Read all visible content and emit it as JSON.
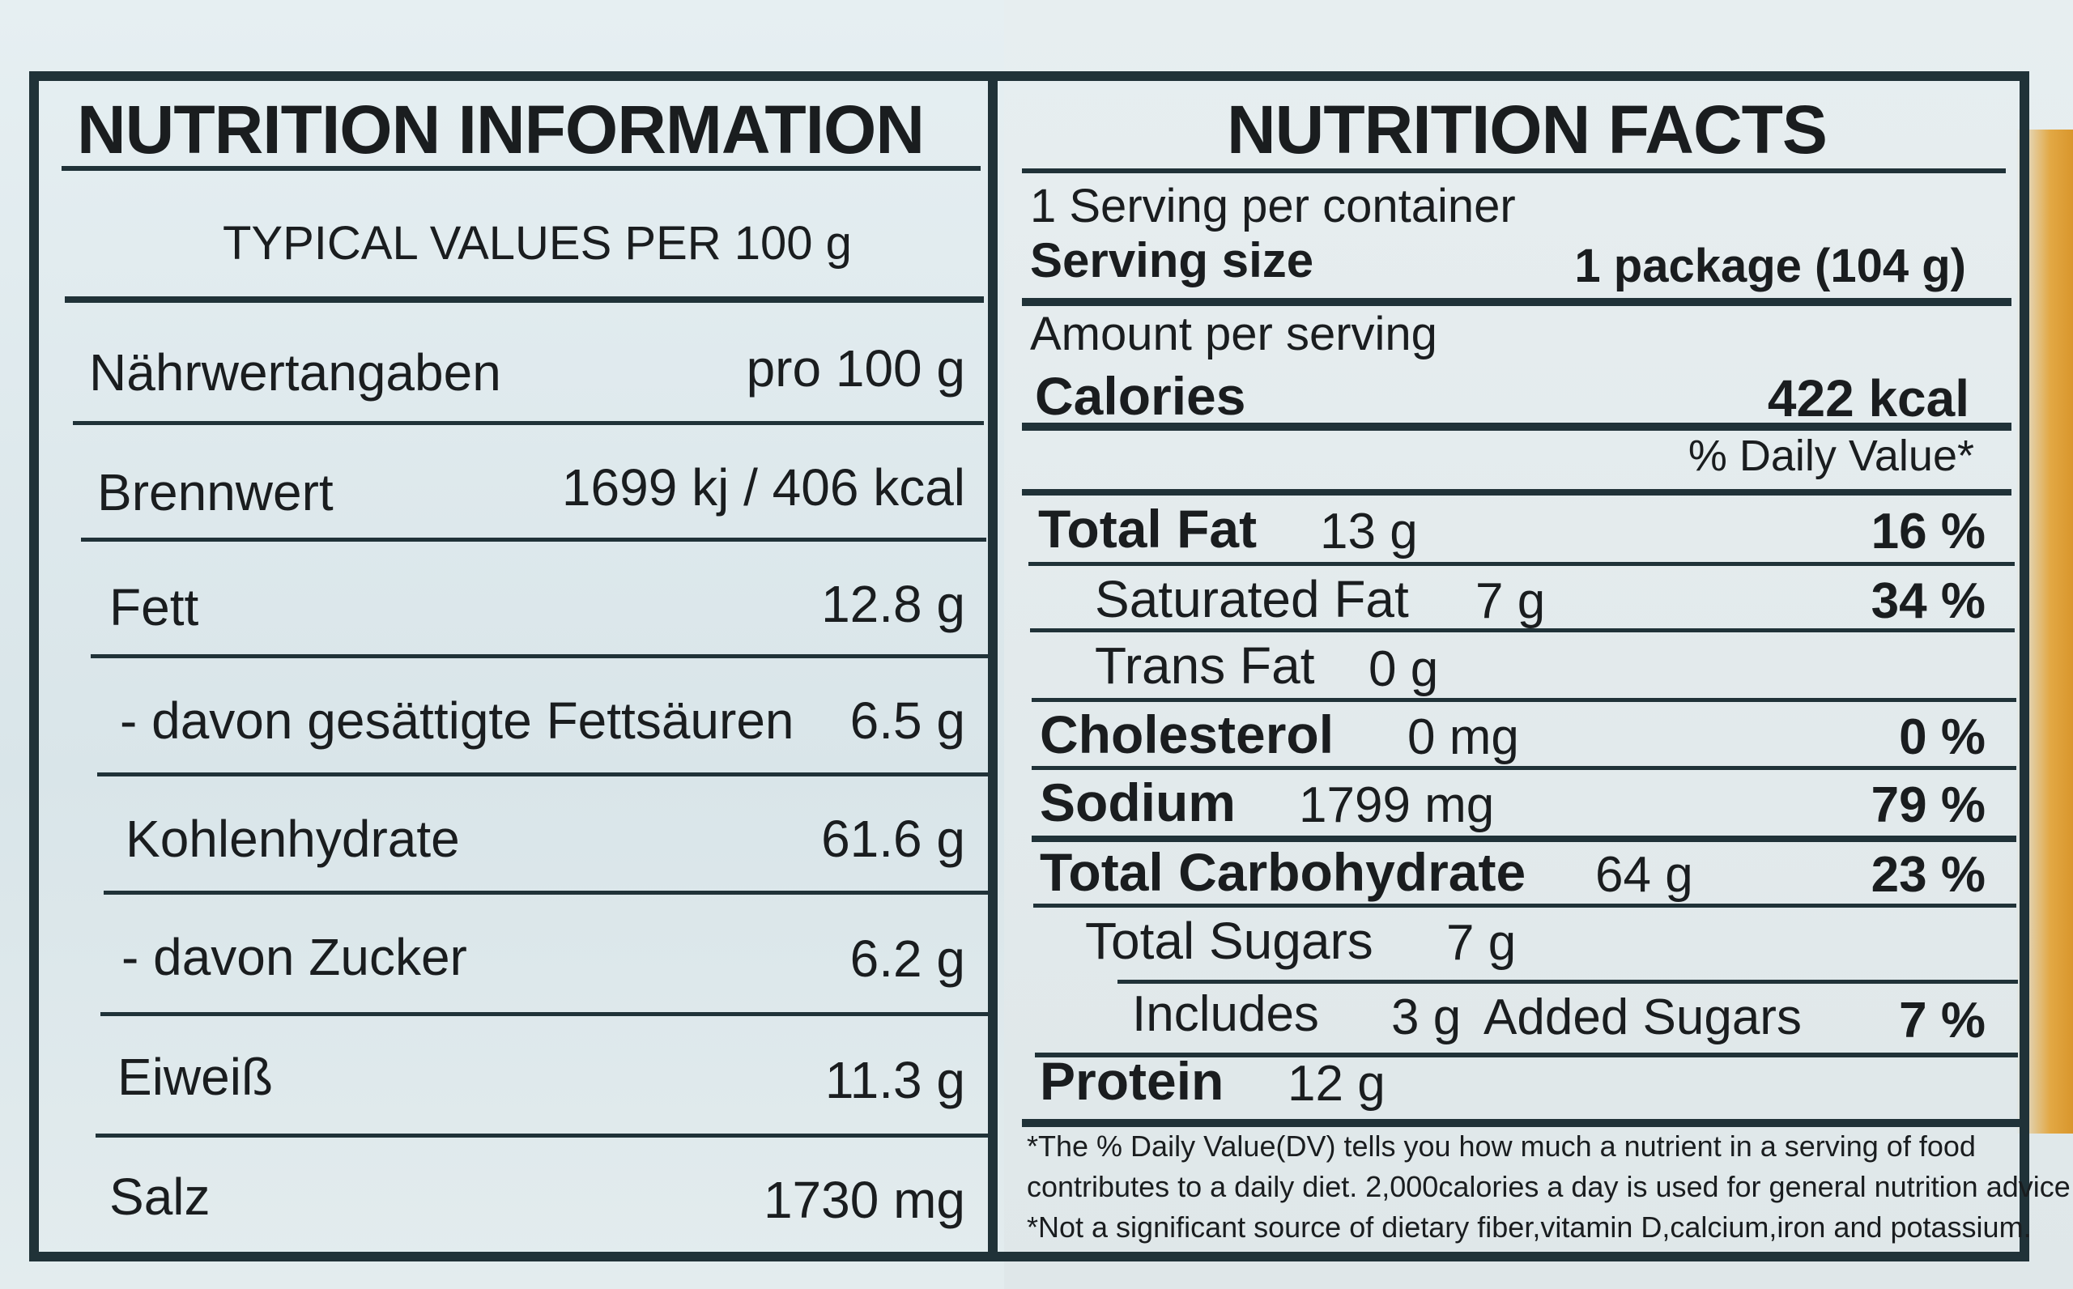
{
  "left": {
    "title": "NUTRITION INFORMATION",
    "subtitle": "TYPICAL VALUES PER 100 g",
    "header": {
      "name": "Nährwertangaben",
      "value": "pro 100 g"
    },
    "rows": [
      {
        "name": "Brennwert",
        "value": "1699 kj / 406 kcal"
      },
      {
        "name": "Fett",
        "value": "12.8 g"
      },
      {
        "name": "- davon gesättigte Fettsäuren",
        "value": "6.5 g"
      },
      {
        "name": "Kohlenhydrate",
        "value": "61.6 g"
      },
      {
        "name": "- davon Zucker",
        "value": "6.2 g"
      },
      {
        "name": "Eiweiß",
        "value": "11.3 g"
      },
      {
        "name": "Salz",
        "value": "1730 mg"
      }
    ]
  },
  "right": {
    "title": "NUTRITION FACTS",
    "servings": "1 Serving per container",
    "serving_size_label": "Serving size",
    "serving_size_value": "1 package (104 g)",
    "amount_per_serving": "Amount per serving",
    "calories_label": "Calories",
    "calories_value": "422 kcal",
    "dv_header": "% Daily Value*",
    "rows": [
      {
        "label": "Total Fat",
        "amount": "13 g",
        "pct": "16 %"
      },
      {
        "label": "Saturated Fat",
        "amount": "7 g",
        "pct": "34 %"
      },
      {
        "label": "Trans Fat",
        "amount": "0 g",
        "pct": ""
      },
      {
        "label": "Cholesterol",
        "amount": "0 mg",
        "pct": "0 %"
      },
      {
        "label": "Sodium",
        "amount": "1799 mg",
        "pct": "79 %"
      },
      {
        "label": "Total Carbohydrate",
        "amount": "64 g",
        "pct": "23 %"
      },
      {
        "label": "Total Sugars",
        "amount": "7 g",
        "pct": ""
      },
      {
        "label": "Includes",
        "amount": "3 g",
        "extra": "Added Sugars",
        "pct": "7 %"
      },
      {
        "label": "Protein",
        "amount": "12 g",
        "pct": ""
      }
    ],
    "footnote_1": "*The % Daily Value(DV) tells you how much a nutrient in a serving of food",
    "footnote_2": "contributes to a daily diet. 2,000calories a day is used for general nutrition advice.",
    "footnote_3": "*Not a significant source of dietary fiber,vitamin D,calcium,iron and potassium."
  }
}
